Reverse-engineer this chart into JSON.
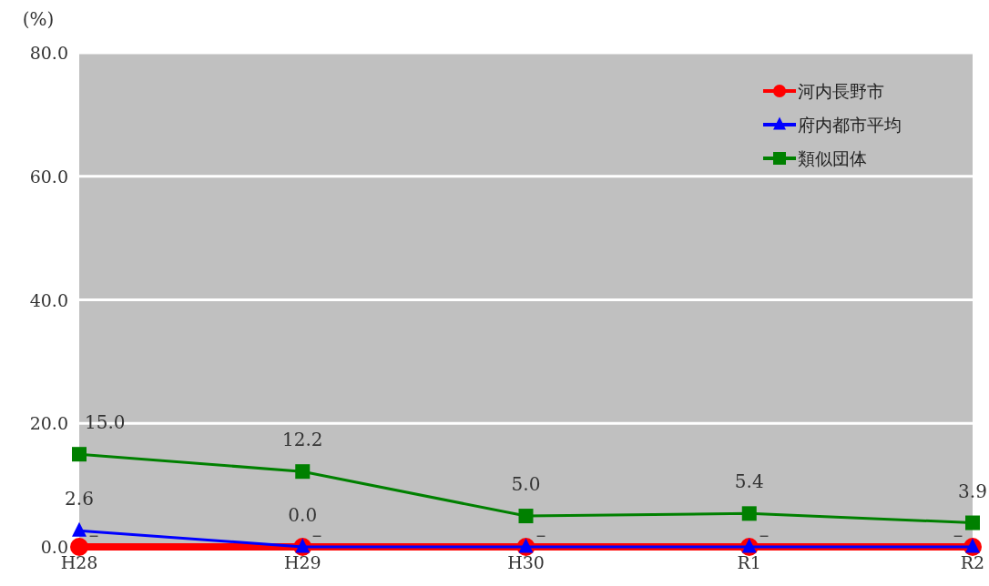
{
  "chart_data": {
    "type": "line",
    "ylabel": "(%)",
    "categories": [
      "H28",
      "H29",
      "H30",
      "R1",
      "R2"
    ],
    "ylim": [
      0,
      80
    ],
    "yticks": [
      {
        "value": 0,
        "label": "0.0"
      },
      {
        "value": 20,
        "label": "20.0"
      },
      {
        "value": 40,
        "label": "40.0"
      },
      {
        "value": 60,
        "label": "60.0"
      },
      {
        "value": 80,
        "label": "80.0"
      }
    ],
    "grid": "y",
    "legend": "top right",
    "line_style": "solid",
    "series": [
      {
        "name": "河内長野市",
        "color": "#ff0000",
        "marker": "circle",
        "values": [
          0,
          0,
          0,
          0,
          0
        ],
        "value_labels": [
          "－",
          "－",
          "－",
          "－",
          "－"
        ]
      },
      {
        "name": "府内都市平均",
        "color": "#0000ff",
        "marker": "triangle",
        "values": [
          2.6,
          0,
          0,
          0,
          0
        ],
        "value_labels": [
          "2.6",
          "0.0",
          null,
          null,
          null
        ]
      },
      {
        "name": "類似団体",
        "color": "#008000",
        "marker": "square",
        "values": [
          15.0,
          12.2,
          5.0,
          5.4,
          3.9
        ],
        "value_labels": [
          "15.0",
          "12.2",
          "5.0",
          "5.4",
          "3.9"
        ]
      }
    ]
  }
}
